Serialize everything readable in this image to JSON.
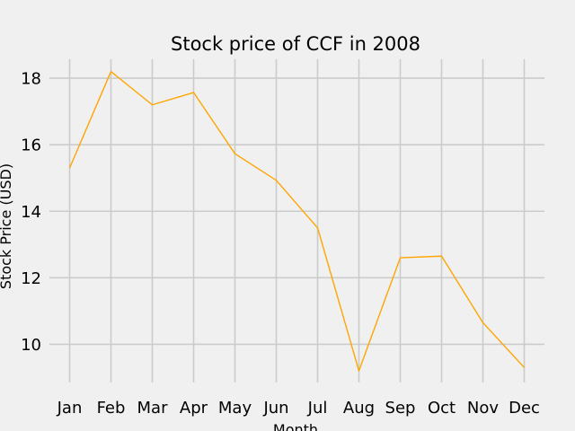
{
  "chart_data": {
    "type": "line",
    "title": "Stock price of CCF in 2008",
    "xlabel": "Month",
    "ylabel": "Stock Price (USD)",
    "categories": [
      "Jan",
      "Feb",
      "Mar",
      "Apr",
      "May",
      "Jun",
      "Jul",
      "Aug",
      "Sep",
      "Oct",
      "Nov",
      "Dec"
    ],
    "series": [
      {
        "values": [
          15.3,
          18.2,
          17.2,
          17.57,
          15.73,
          14.93,
          13.5,
          9.2,
          12.6,
          12.65,
          10.65,
          9.3
        ],
        "color": "#ffa500"
      }
    ],
    "yticks": [
      10,
      12,
      14,
      16,
      18
    ],
    "ylim": [
      8.85,
      18.57
    ],
    "grid": true,
    "background_color": "#f0f0f0",
    "grid_color": "#cbcbcb"
  }
}
